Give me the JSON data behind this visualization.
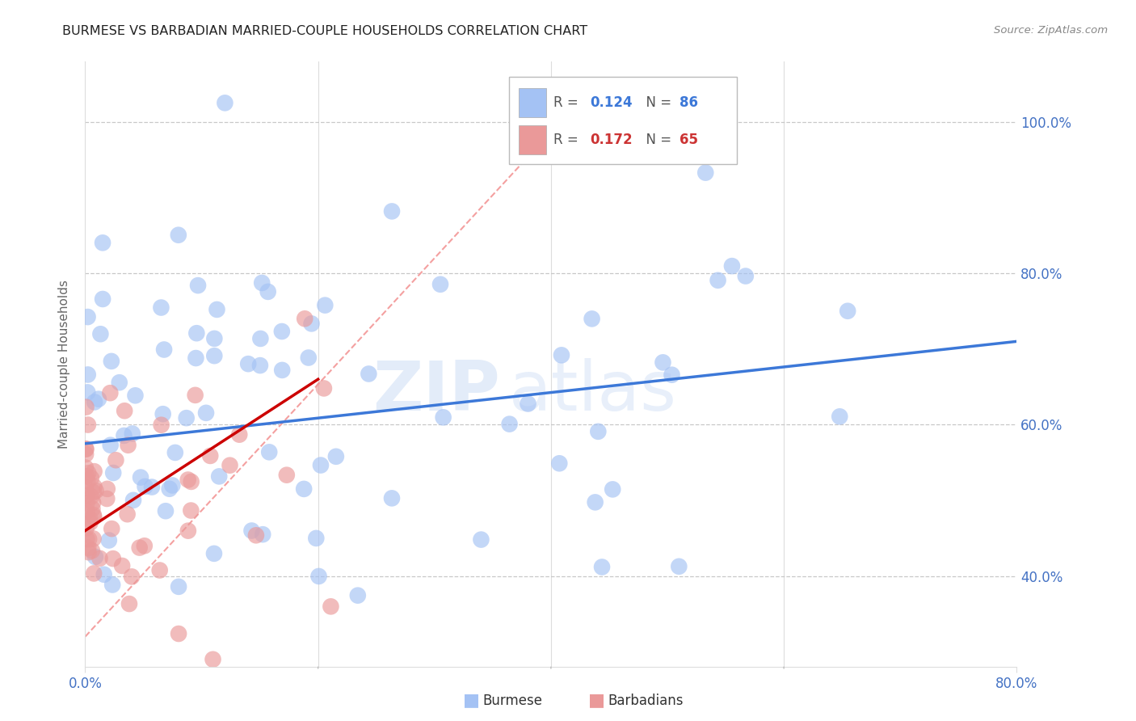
{
  "title": "BURMESE VS BARBADIAN MARRIED-COUPLE HOUSEHOLDS CORRELATION CHART",
  "source": "Source: ZipAtlas.com",
  "ylabel": "Married-couple Households",
  "ytick_vals": [
    40.0,
    60.0,
    80.0,
    100.0
  ],
  "ytick_labels": [
    "40.0%",
    "60.0%",
    "80.0%",
    "100.0%"
  ],
  "burmese_R": 0.124,
  "burmese_N": 86,
  "barbadian_R": 0.172,
  "barbadian_N": 65,
  "burmese_color": "#a4c2f4",
  "barbadian_color": "#ea9999",
  "burmese_line_color": "#3c78d8",
  "barbadian_line_color": "#cc0000",
  "watermark_zip": "ZIP",
  "watermark_atlas": "atlas",
  "xmin": 0.0,
  "xmax": 80.0,
  "ymin": 28.0,
  "ymax": 108.0,
  "blue_line_x0": 0.0,
  "blue_line_x1": 80.0,
  "blue_line_y0": 57.5,
  "blue_line_y1": 71.0,
  "pink_line_x0": 0.0,
  "pink_line_x1": 20.0,
  "pink_line_y0": 46.0,
  "pink_line_y1": 66.0,
  "diag_line_x0": 0.0,
  "diag_line_x1": 42.0,
  "diag_line_y0": 32.0,
  "diag_line_y1": 102.0,
  "axis_color": "#4472c4",
  "grid_color": "#c8c8c8",
  "bg_color": "#ffffff",
  "title_color": "#222222",
  "source_color": "#888888"
}
